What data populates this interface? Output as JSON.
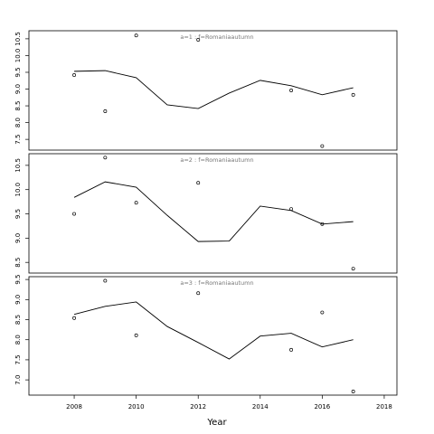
{
  "chart_data": [
    {
      "type": "line",
      "title": "a=1  :  f=Romaniaautumn",
      "x": [
        2008,
        2009,
        2010,
        2011,
        2012,
        2013,
        2014,
        2015,
        2016,
        2017
      ],
      "values": [
        9.53,
        9.55,
        9.34,
        8.53,
        8.42,
        8.88,
        9.26,
        9.1,
        8.83,
        9.04
      ],
      "points": {
        "x": [
          2008,
          2009,
          2010,
          2012,
          2015,
          2016,
          2017
        ],
        "values": [
          9.42,
          8.34,
          10.6,
          10.47,
          8.96,
          7.3,
          8.83
        ]
      },
      "xlim": [
        2006.54,
        2018.41
      ],
      "ylim": [
        7.18,
        10.74
      ],
      "yticks": [
        {
          "value": 7.5,
          "label": "7.5"
        },
        {
          "value": 8,
          "label": "8.0"
        },
        {
          "value": 8.5,
          "label": "8.5"
        },
        {
          "value": 9,
          "label": "9.0"
        },
        {
          "value": 9.5,
          "label": "9.5"
        },
        {
          "value": 10,
          "label": "10.0"
        },
        {
          "value": 10.5,
          "label": "10.5"
        }
      ]
    },
    {
      "type": "line",
      "title": "a=2  :  f=Romaniaautumn",
      "x": [
        2008,
        2009,
        2010,
        2011,
        2012,
        2013,
        2014,
        2015,
        2016,
        2017
      ],
      "values": [
        9.84,
        10.16,
        10.05,
        9.47,
        8.93,
        8.94,
        9.66,
        9.57,
        9.29,
        9.34
      ],
      "points": {
        "x": [
          2008,
          2009,
          2010,
          2012,
          2015,
          2016,
          2017
        ],
        "values": [
          9.5,
          10.66,
          9.73,
          10.14,
          9.6,
          9.29,
          8.37
        ]
      },
      "xlim": [
        2006.54,
        2018.41
      ],
      "ylim": [
        8.28,
        10.74
      ],
      "yticks": [
        8.5,
        {
          "value": 9,
          "label": "9.0"
        },
        9.5,
        {
          "value": 10,
          "label": "10.0"
        },
        10.5
      ]
    },
    {
      "type": "line",
      "title": "a=3  :  f=Romaniaautumn",
      "x": [
        2008,
        2009,
        2010,
        2011,
        2012,
        2013,
        2014,
        2015,
        2016,
        2017
      ],
      "values": [
        8.63,
        8.83,
        8.94,
        8.33,
        7.93,
        7.52,
        8.09,
        8.16,
        7.82,
        8.0
      ],
      "points": {
        "x": [
          2008,
          2009,
          2010,
          2012,
          2015,
          2016,
          2017
        ],
        "values": [
          8.54,
          9.47,
          8.11,
          9.16,
          7.75,
          8.68,
          6.71
        ]
      },
      "xlim": [
        2006.54,
        2018.41
      ],
      "ylim": [
        6.62,
        9.57
      ],
      "yticks": [
        {
          "value": 7,
          "label": "7.0"
        },
        7.5,
        {
          "value": 8,
          "label": "8.0"
        },
        8.5,
        {
          "value": 9,
          "label": "9.0"
        },
        9.5
      ],
      "xlabel": "Year",
      "xticks": [
        2008,
        2010,
        2012,
        2014,
        2016,
        2018
      ]
    }
  ]
}
